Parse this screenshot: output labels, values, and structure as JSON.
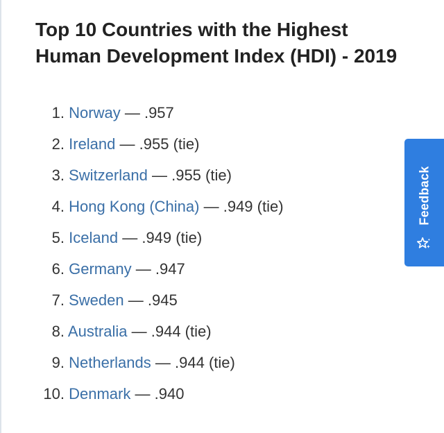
{
  "title": "Top 10 Countries with the Highest Human Development Index (HDI) - 2019",
  "items": [
    {
      "num": "1.",
      "country": "Norway",
      "score": ".957"
    },
    {
      "num": "2.",
      "country": "Ireland",
      "score": ".955 (tie)"
    },
    {
      "num": "3.",
      "country": "Switzerland",
      "score": ".955 (tie)"
    },
    {
      "num": "4.",
      "country": "Hong Kong (China)",
      "score": ".949 (tie)"
    },
    {
      "num": "5.",
      "country": "Iceland",
      "score": ".949 (tie)"
    },
    {
      "num": "6.",
      "country": "Germany",
      "score": ".947"
    },
    {
      "num": "7.",
      "country": "Sweden",
      "score": ".945"
    },
    {
      "num": "8.",
      "country": "Australia",
      "score": ".944 (tie)"
    },
    {
      "num": "9.",
      "country": "Netherlands",
      "score": ".944 (tie)"
    },
    {
      "num": "10.",
      "country": "Denmark",
      "score": ".940"
    }
  ],
  "separator": "—",
  "feedback": {
    "label": "Feedback",
    "icon": "sparkle-star-icon",
    "color": "#2f7ee0"
  },
  "colors": {
    "link": "#3a6fa7",
    "text": "#222222"
  }
}
